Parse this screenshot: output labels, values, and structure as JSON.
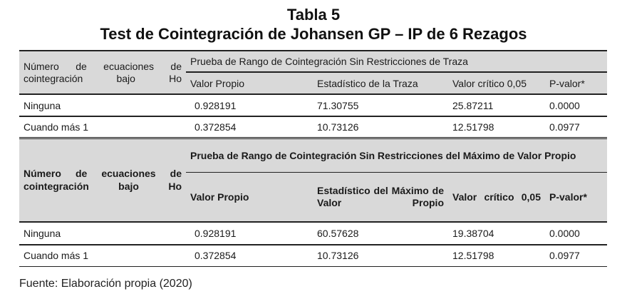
{
  "title": {
    "line1": "Tabla 5",
    "line2": "Test de Cointegración de Johansen GP – IP de 6 Rezagos"
  },
  "table": {
    "section1": {
      "row_label": "Número de ecuaciones de cointegración bajo Ho",
      "header": "Prueba de Rango de Cointegración Sin Restricciones de Traza",
      "columns": [
        "Valor Propio",
        "Estadístico de la Traza",
        "Valor crítico 0,05",
        "P-valor*"
      ],
      "rows": [
        {
          "label": "Ninguna",
          "values": [
            "0.928191",
            "71.30755",
            "25.87211",
            "0.0000"
          ]
        },
        {
          "label": "Cuando más 1",
          "values": [
            "0.372854",
            "10.73126",
            "12.51798",
            "0.0977"
          ]
        }
      ]
    },
    "section2": {
      "row_label": "Número de ecuaciones de cointegración bajo Ho",
      "header": "Prueba de Rango de Cointegración Sin Restricciones del Máximo de Valor Propio",
      "columns": [
        "Valor Propio",
        "Estadístico del Máximo de Valor Propio",
        "Valor crítico 0,05",
        "P-valor*"
      ],
      "rows": [
        {
          "label": "Ninguna",
          "values": [
            "0.928191",
            "60.57628",
            "19.38704",
            "0.0000"
          ]
        },
        {
          "label": "Cuando más 1",
          "values": [
            "0.372854",
            "10.73126",
            "12.51798",
            "0.0977"
          ]
        }
      ]
    }
  },
  "source": "Fuente: Elaboración propia (2020)"
}
